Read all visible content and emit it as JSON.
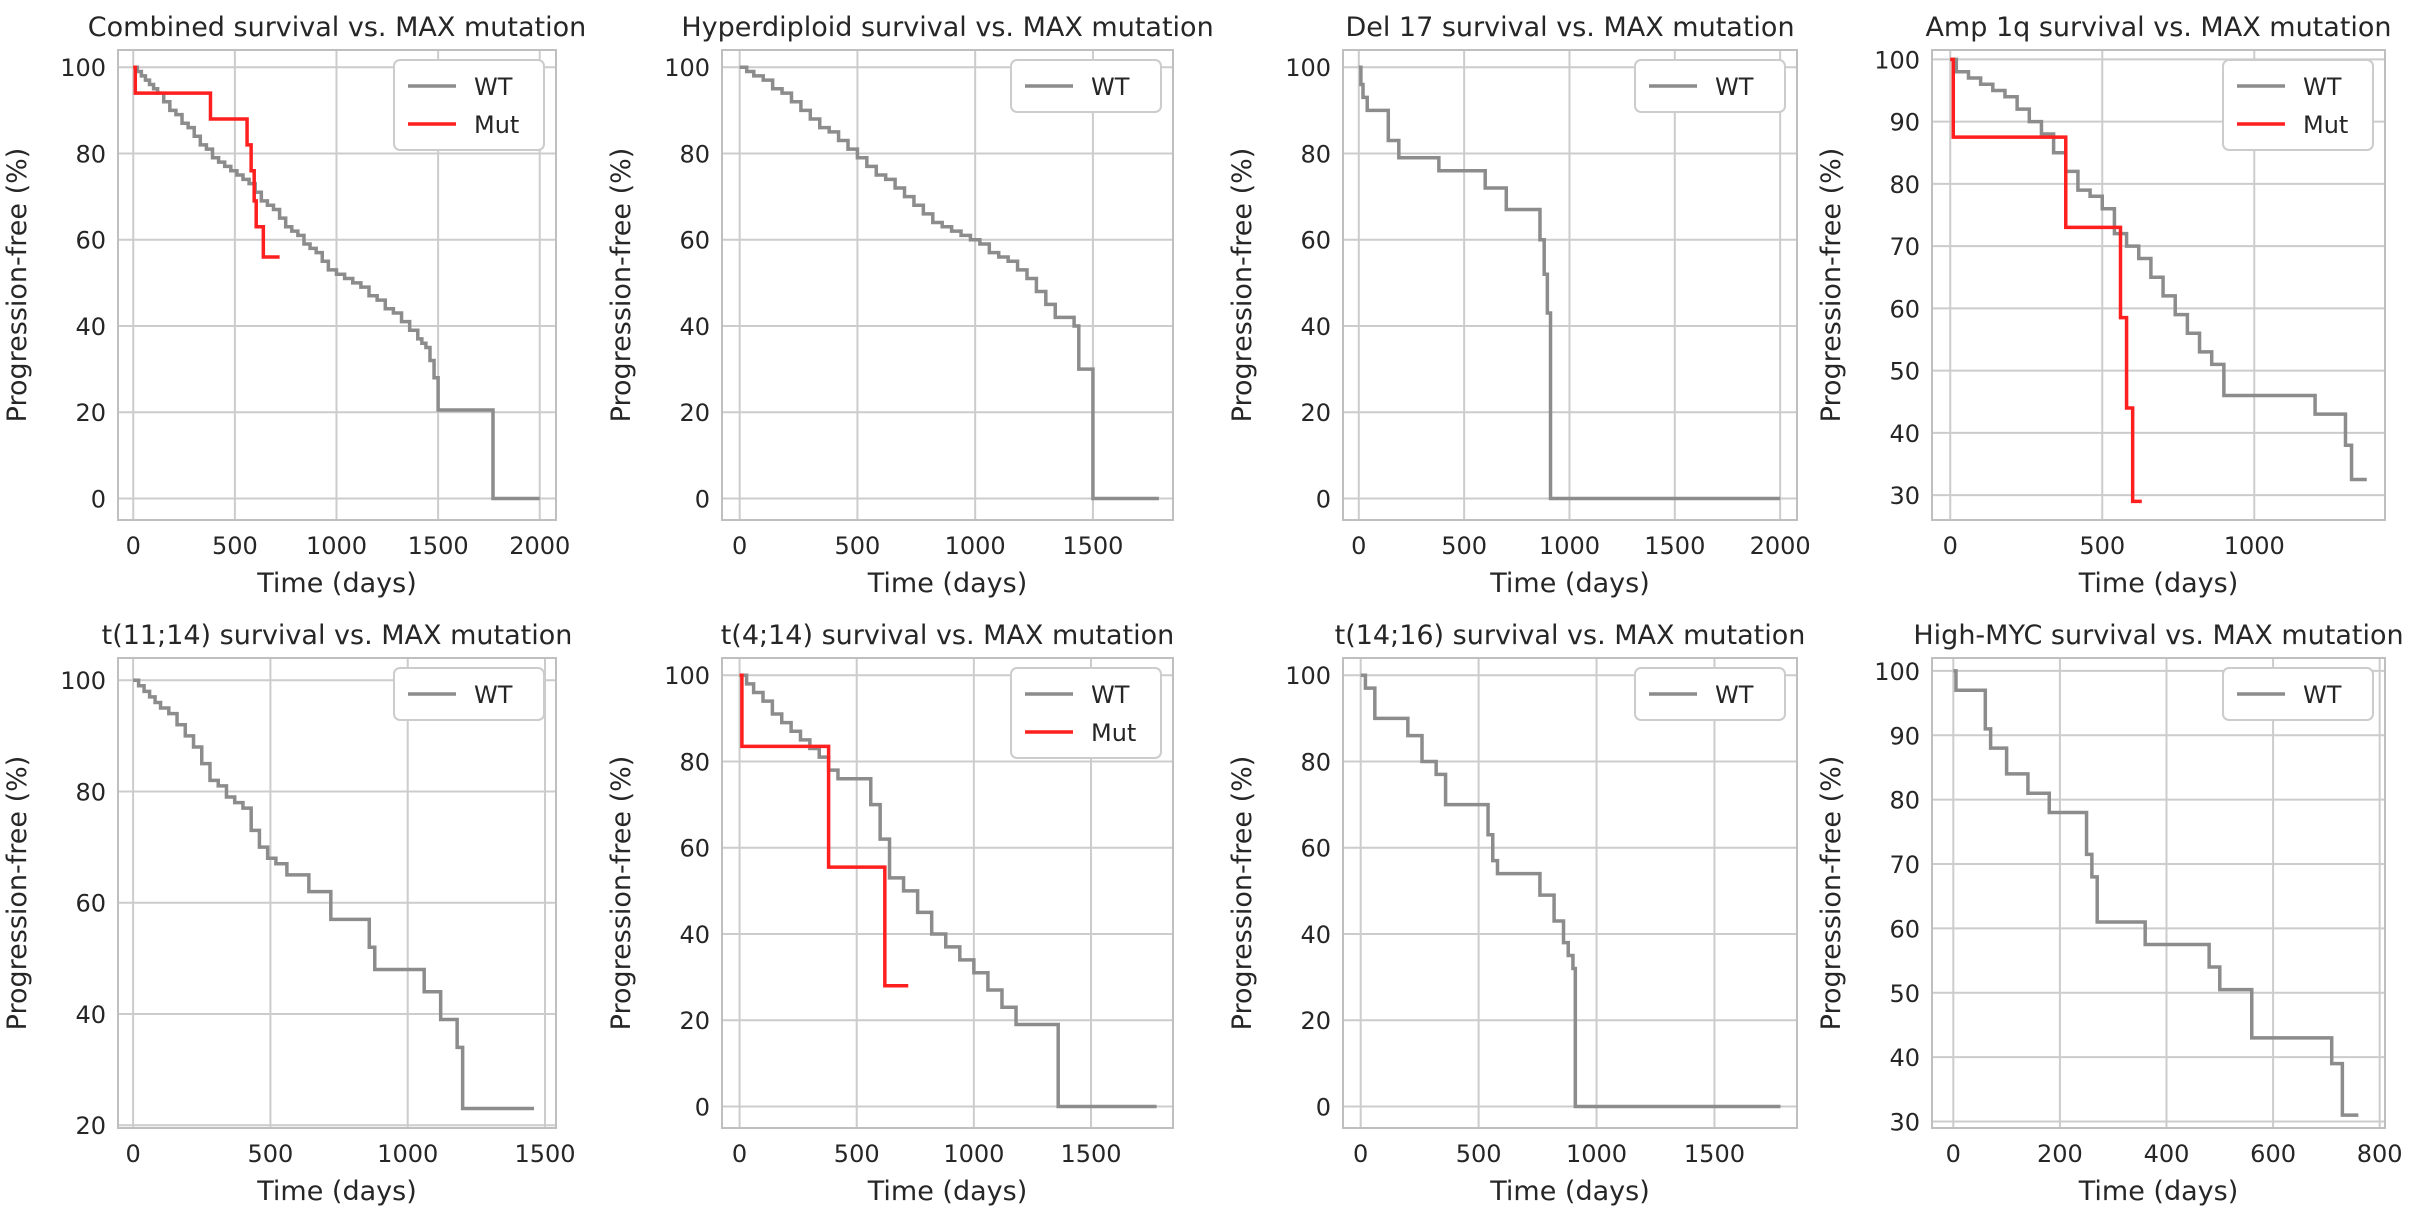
{
  "colors": {
    "WT": "#8c8c8c",
    "Mut": "#ff1f1f",
    "grid": "#cccccc"
  },
  "chart_data": [
    {
      "type": "line",
      "title": "Combined survival vs. MAX mutation",
      "xlabel": "Time (days)",
      "ylabel": "Progression-free (%)",
      "xlim": [
        -75,
        2080
      ],
      "ylim": [
        -5,
        104
      ],
      "xticks": [
        0,
        500,
        1000,
        1500,
        2000
      ],
      "yticks": [
        0,
        20,
        40,
        60,
        80,
        100
      ],
      "legend": [
        "WT",
        "Mut"
      ],
      "series": [
        {
          "name": "WT",
          "x": [
            0,
            20,
            40,
            60,
            80,
            100,
            120,
            150,
            180,
            210,
            240,
            270,
            300,
            330,
            360,
            390,
            420,
            450,
            480,
            510,
            540,
            570,
            600,
            630,
            660,
            690,
            720,
            750,
            780,
            810,
            840,
            870,
            900,
            930,
            960,
            1000,
            1040,
            1080,
            1120,
            1160,
            1200,
            1240,
            1280,
            1320,
            1360,
            1400,
            1420,
            1440,
            1460,
            1480,
            1500,
            1760,
            1770,
            2000
          ],
          "y": [
            100,
            99,
            98,
            97,
            96,
            95,
            94,
            92,
            90,
            89,
            87,
            86,
            84,
            82,
            81,
            79,
            78,
            77,
            76,
            75,
            74,
            73,
            71,
            69,
            68,
            67,
            65,
            63,
            62,
            61,
            59,
            58,
            57,
            55,
            53,
            52,
            51,
            50,
            49,
            47,
            46,
            44,
            43,
            41,
            39,
            37,
            36,
            35,
            32,
            28,
            20.5,
            20.5,
            0,
            0
          ]
        },
        {
          "name": "Mut",
          "x": [
            0,
            10,
            380,
            560,
            580,
            595,
            605,
            640,
            720
          ],
          "y": [
            100,
            94,
            88,
            82,
            76,
            69,
            63,
            56,
            56
          ]
        }
      ]
    },
    {
      "type": "line",
      "title": "Hyperdiploid survival vs. MAX mutation",
      "xlabel": "Time (days)",
      "ylabel": "Progression-free (%)",
      "xlim": [
        -75,
        1840
      ],
      "ylim": [
        -5,
        104
      ],
      "xticks": [
        0,
        500,
        1000,
        1500
      ],
      "yticks": [
        0,
        20,
        40,
        60,
        80,
        100
      ],
      "legend": [
        "WT"
      ],
      "series": [
        {
          "name": "WT",
          "x": [
            0,
            30,
            60,
            100,
            140,
            180,
            220,
            260,
            300,
            340,
            380,
            420,
            460,
            500,
            540,
            580,
            620,
            660,
            700,
            740,
            780,
            820,
            860,
            900,
            940,
            980,
            1020,
            1060,
            1100,
            1140,
            1180,
            1220,
            1260,
            1300,
            1340,
            1380,
            1420,
            1440,
            1460,
            1500,
            1780
          ],
          "y": [
            100,
            99,
            98,
            97,
            95,
            94,
            92,
            90,
            88,
            86,
            85,
            83,
            81,
            79,
            77,
            75,
            74,
            72,
            70,
            68,
            66,
            64,
            63,
            62,
            61,
            60,
            59,
            57,
            56,
            55,
            53,
            51,
            48,
            45,
            42,
            42,
            40,
            30,
            30,
            0,
            0
          ]
        }
      ]
    },
    {
      "type": "line",
      "title": "Del 17 survival vs. MAX mutation",
      "xlabel": "Time (days)",
      "ylabel": "Progression-free (%)",
      "xlim": [
        -75,
        2080
      ],
      "ylim": [
        -5,
        104
      ],
      "xticks": [
        0,
        500,
        1000,
        1500,
        2000
      ],
      "yticks": [
        0,
        20,
        40,
        60,
        80,
        100
      ],
      "legend": [
        "WT"
      ],
      "series": [
        {
          "name": "WT",
          "x": [
            0,
            10,
            20,
            40,
            140,
            190,
            380,
            600,
            700,
            860,
            880,
            895,
            910,
            2000
          ],
          "y": [
            100,
            96,
            93,
            90,
            83,
            79,
            76,
            72,
            67,
            60,
            52,
            43,
            0,
            0
          ]
        }
      ]
    },
    {
      "type": "line",
      "title": "Amp 1q survival vs. MAX mutation",
      "xlabel": "Time (days)",
      "ylabel": "Progression-free (%)",
      "xlim": [
        -60,
        1430
      ],
      "ylim": [
        26,
        101.5
      ],
      "xticks": [
        0,
        500,
        1000
      ],
      "yticks": [
        30,
        40,
        50,
        60,
        70,
        80,
        90,
        100
      ],
      "legend": [
        "WT",
        "Mut"
      ],
      "series": [
        {
          "name": "WT",
          "x": [
            0,
            20,
            60,
            100,
            140,
            180,
            220,
            260,
            300,
            340,
            380,
            420,
            460,
            500,
            540,
            580,
            620,
            660,
            700,
            740,
            780,
            820,
            860,
            900,
            1200,
            1300,
            1320,
            1370
          ],
          "y": [
            100,
            98,
            97,
            96,
            95,
            94,
            92,
            90,
            88,
            85,
            82,
            79,
            78,
            76,
            72,
            70,
            68,
            65,
            62,
            59,
            56,
            53,
            51,
            46,
            43,
            38,
            32.5,
            32.5
          ],
          "shape": "hv"
        },
        {
          "name": "Mut",
          "x": [
            0,
            10,
            380,
            560,
            580,
            600,
            630
          ],
          "y": [
            100,
            87.5,
            73,
            58.5,
            44,
            29,
            29
          ]
        }
      ]
    },
    {
      "type": "line",
      "title": "t(11;14) survival vs. MAX mutation",
      "xlabel": "Time (days)",
      "ylabel": "Progression-free (%)",
      "xlim": [
        -55,
        1540
      ],
      "ylim": [
        19.5,
        104
      ],
      "xticks": [
        0,
        500,
        1000,
        1500
      ],
      "yticks": [
        20,
        40,
        60,
        80,
        100
      ],
      "legend": [
        "WT"
      ],
      "series": [
        {
          "name": "WT",
          "x": [
            0,
            20,
            40,
            60,
            80,
            100,
            130,
            160,
            190,
            220,
            250,
            280,
            310,
            340,
            370,
            400,
            430,
            460,
            490,
            520,
            560,
            640,
            720,
            860,
            880,
            1060,
            1120,
            1180,
            1200,
            1460
          ],
          "y": [
            100,
            99,
            98,
            97,
            96,
            95,
            94,
            92,
            90,
            88,
            85,
            82,
            81,
            79,
            78,
            77,
            73,
            70,
            68,
            67,
            65,
            62,
            57,
            52,
            48,
            44,
            39,
            34,
            23,
            23
          ]
        }
      ]
    },
    {
      "type": "line",
      "title": "t(4;14) survival vs. MAX mutation",
      "xlabel": "Time (days)",
      "ylabel": "Progression-free (%)",
      "xlim": [
        -75,
        1850
      ],
      "ylim": [
        -5,
        104
      ],
      "xticks": [
        0,
        500,
        1000,
        1500
      ],
      "yticks": [
        0,
        20,
        40,
        60,
        80,
        100
      ],
      "legend": [
        "WT",
        "Mut"
      ],
      "series": [
        {
          "name": "WT",
          "x": [
            0,
            30,
            60,
            100,
            140,
            180,
            220,
            260,
            300,
            340,
            380,
            420,
            560,
            600,
            640,
            700,
            760,
            820,
            880,
            940,
            1000,
            1060,
            1120,
            1180,
            1360,
            1780
          ],
          "y": [
            100,
            98,
            96,
            94,
            91,
            89,
            87,
            85,
            83,
            81,
            78,
            76,
            70,
            62,
            53,
            50,
            45,
            40,
            37,
            34,
            31,
            27,
            23,
            19,
            0,
            0
          ]
        },
        {
          "name": "Mut",
          "x": [
            0,
            10,
            380,
            620,
            720
          ],
          "y": [
            100,
            83.5,
            55.5,
            28,
            28
          ]
        }
      ]
    },
    {
      "type": "line",
      "title": "t(14;16) survival vs. MAX mutation",
      "xlabel": "Time (days)",
      "ylabel": "Progression-free (%)",
      "xlim": [
        -75,
        1850
      ],
      "ylim": [
        -5,
        104
      ],
      "xticks": [
        0,
        500,
        1000,
        1500
      ],
      "yticks": [
        0,
        20,
        40,
        60,
        80,
        100
      ],
      "legend": [
        "WT"
      ],
      "series": [
        {
          "name": "WT",
          "x": [
            0,
            20,
            60,
            200,
            260,
            320,
            360,
            540,
            560,
            580,
            760,
            820,
            860,
            880,
            900,
            910,
            1780
          ],
          "y": [
            100,
            97,
            90,
            86,
            80,
            77,
            70,
            63,
            57,
            54,
            49,
            43,
            38,
            35,
            32,
            0,
            0
          ]
        }
      ]
    },
    {
      "type": "line",
      "title": "High-MYC survival vs. MAX mutation",
      "xlabel": "Time (days)",
      "ylabel": "Progression-free (%)",
      "xlim": [
        -40,
        810
      ],
      "ylim": [
        29,
        102
      ],
      "xticks": [
        0,
        200,
        400,
        600,
        800
      ],
      "yticks": [
        30,
        40,
        50,
        60,
        70,
        80,
        90,
        100
      ],
      "legend": [
        "WT"
      ],
      "series": [
        {
          "name": "WT",
          "x": [
            0,
            5,
            60,
            70,
            100,
            140,
            180,
            250,
            260,
            270,
            360,
            480,
            500,
            560,
            710,
            730,
            760
          ],
          "y": [
            100,
            97,
            91,
            88,
            84,
            81,
            78,
            71.5,
            68,
            61,
            57.5,
            54,
            50.5,
            43,
            39,
            31,
            31
          ]
        }
      ]
    }
  ]
}
